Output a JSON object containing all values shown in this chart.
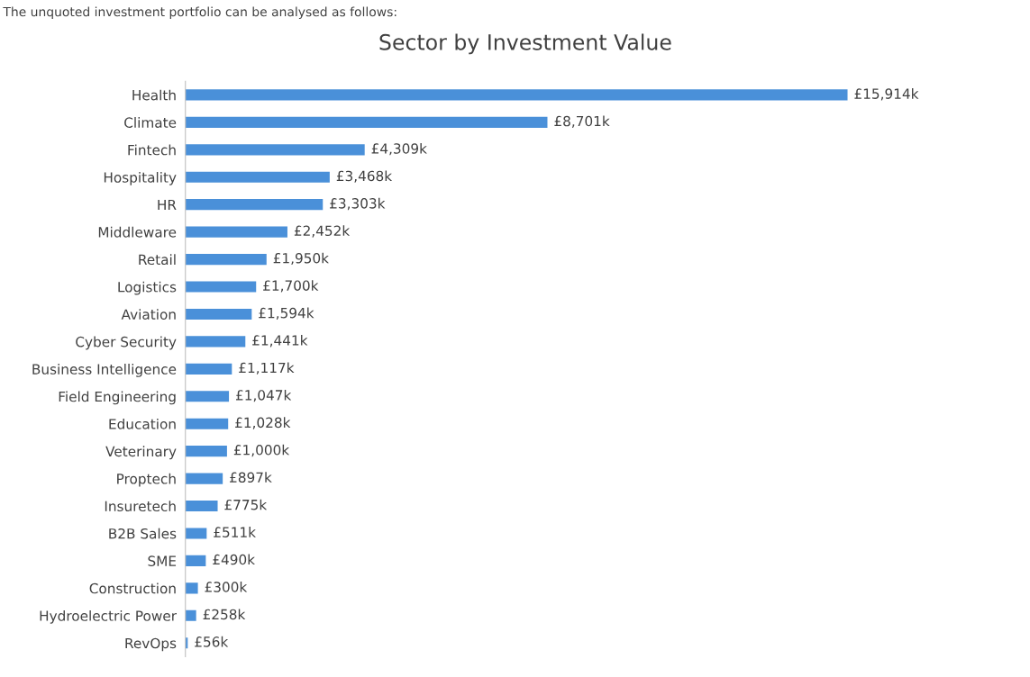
{
  "chart_data": {
    "type": "bar",
    "orientation": "horizontal",
    "title": "Sector by Investment Value",
    "annotations": [
      "The unquoted investment portfolio can be analysed as follows:"
    ],
    "categories": [
      "Health",
      "Climate",
      "Fintech",
      "Hospitality",
      "HR",
      "Middleware",
      "Retail",
      "Logistics",
      "Aviation",
      "Cyber Security",
      "Business Intelligence",
      "Field Engineering",
      "Education",
      "Veterinary",
      "Proptech",
      "Insuretech",
      "B2B Sales",
      "SME",
      "Construction",
      "Hydroelectric Power",
      "RevOps"
    ],
    "values": [
      15914,
      8701,
      4309,
      3468,
      3303,
      2452,
      1950,
      1700,
      1594,
      1441,
      1117,
      1047,
      1028,
      1000,
      897,
      775,
      511,
      490,
      300,
      258,
      56
    ],
    "value_labels": [
      "£15,914k",
      "£8,701k",
      "£4,309k",
      "£3,468k",
      "£3,303k",
      "£2,452k",
      "£1,950k",
      "£1,700k",
      "£1,594k",
      "£1,441k",
      "£1,117k",
      "£1,047k",
      "£1,028k",
      "£1,000k",
      "£897k",
      "£775k",
      "£511k",
      "£490k",
      "£300k",
      "£258k",
      "£56k"
    ],
    "color": "#4a90d9",
    "grid": false,
    "tick_labels": "y"
  }
}
